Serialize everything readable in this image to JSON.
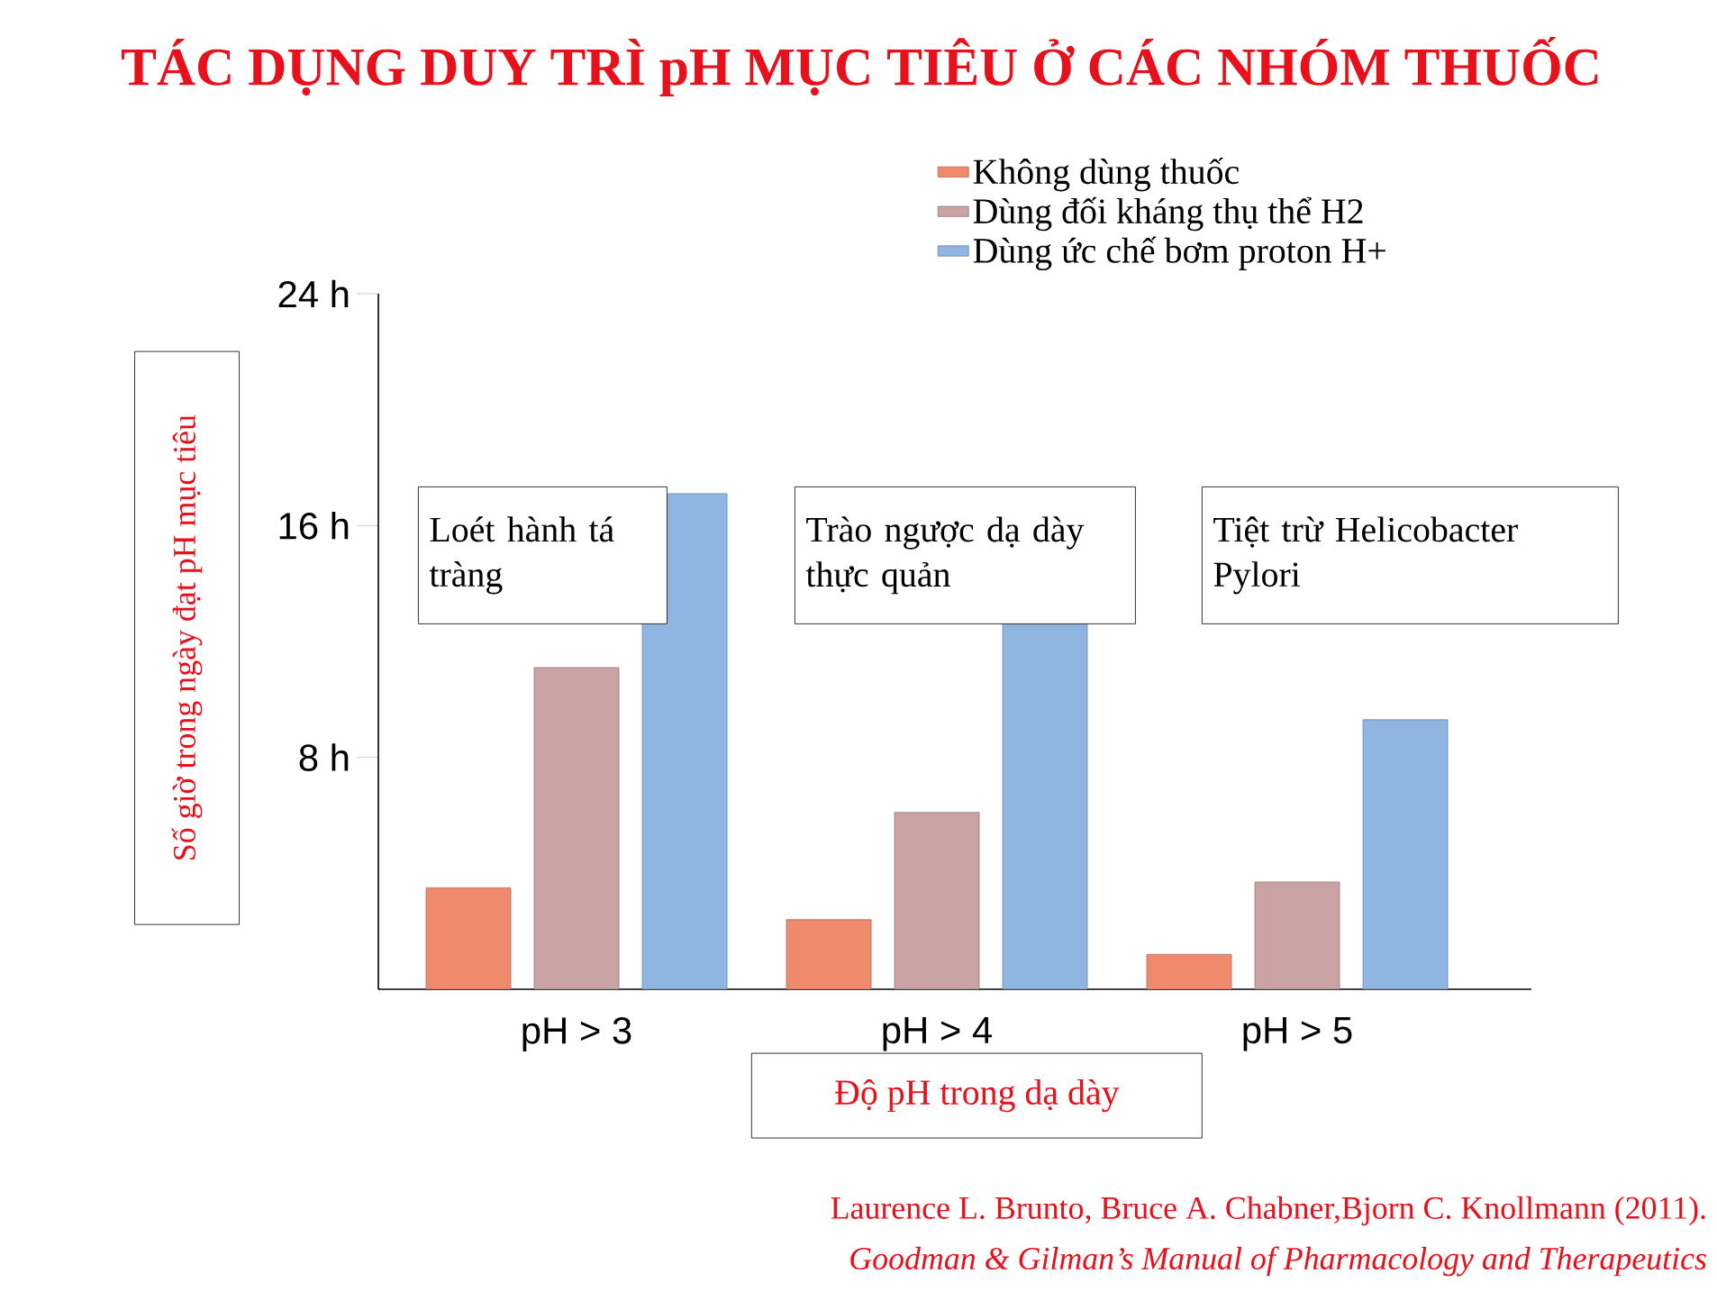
{
  "chart_data": {
    "type": "bar",
    "title": "TÁC DỤNG DUY TRÌ pH MỤC TIÊU Ở CÁC NHÓM THUỐC",
    "xlabel": "Độ pH trong dạ dày",
    "ylabel": "Số giờ trong ngày đạt pH mục tiêu",
    "categories": [
      "pH > 3",
      "pH > 4",
      "pH > 5"
    ],
    "series": [
      {
        "name": "Không dùng thuốc",
        "color": "#f08a6c",
        "values": [
          3.5,
          2.4,
          1.2
        ]
      },
      {
        "name": "Dùng đối kháng thụ thể H2",
        "color": "#c9a3a3",
        "values": [
          11.1,
          6.1,
          3.7
        ]
      },
      {
        "name": "Dùng ức chế bơm proton H+",
        "color": "#8fb5e0",
        "values": [
          17.1,
          12.6,
          9.3
        ]
      }
    ],
    "ylim": [
      0,
      24
    ],
    "yticks": [
      {
        "value": 8,
        "label": "8 h"
      },
      {
        "value": 16,
        "label": "16 h"
      },
      {
        "value": 24,
        "label": "24 h"
      }
    ],
    "legend": "top right",
    "annotations": [
      "Loét hành tá tràng",
      "Trào ngược dạ dày thực quản",
      "Tiệt trừ Helicobacter Pylori",
      "Laurence L. Brunto, Bruce A. Chabner,Bjorn C. Knollmann (2011).",
      "Goodman & Gilman’s Manual of Pharmacology and Therapeutics"
    ]
  }
}
